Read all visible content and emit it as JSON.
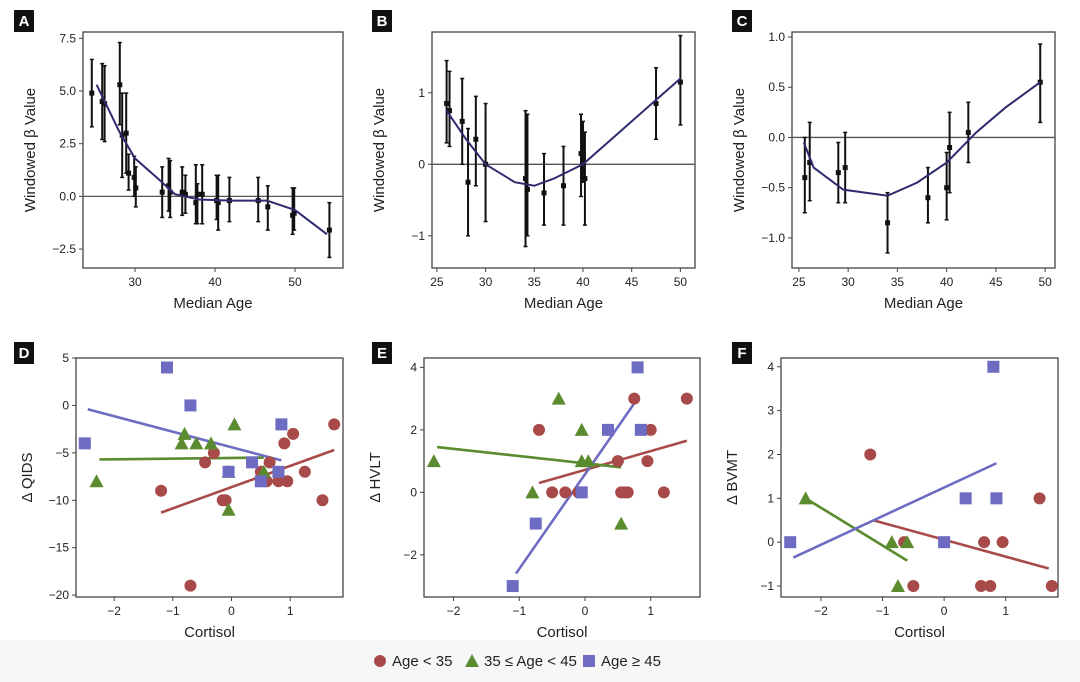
{
  "colors": {
    "red": "#a84a4a",
    "green": "#5b8b2f",
    "blue": "#6e6cc2",
    "curve": "#2e2b6e",
    "err": "#111111"
  },
  "legend": {
    "items": [
      {
        "label": "Age < 35",
        "shape": "circle",
        "color": "#a84a4a"
      },
      {
        "label": "35 ≤ Age < 45",
        "shape": "triangle",
        "color": "#5b8b2f"
      },
      {
        "label": "Age ≥ 45",
        "shape": "square",
        "color": "#6e6cc2"
      }
    ]
  },
  "chart_data": [
    {
      "panel": "A",
      "type": "scatter",
      "xlabel": "Median Age",
      "ylabel": "Windowed β Value",
      "xlim": [
        23.5,
        56
      ],
      "ylim": [
        -3.4,
        7.8
      ],
      "xticks": [
        30,
        40,
        50
      ],
      "yticks": [
        -2.5,
        0,
        2.5,
        5,
        7.5
      ],
      "ytick_labels": [
        "−2.5",
        "0.0",
        "2.5",
        "5.0",
        "7.5"
      ],
      "hline": 0,
      "points": [
        [
          24.6,
          4.9,
          3.3,
          6.5
        ],
        [
          25.9,
          4.5,
          2.7,
          6.3
        ],
        [
          26.2,
          4.4,
          2.6,
          6.2
        ],
        [
          28.1,
          5.3,
          3.4,
          7.3
        ],
        [
          28.4,
          2.9,
          0.9,
          4.9
        ],
        [
          28.9,
          3.0,
          1.1,
          4.9
        ],
        [
          29.2,
          1.1,
          0.3,
          2.0
        ],
        [
          29.9,
          0.9,
          0.0,
          1.9
        ],
        [
          30.1,
          0.4,
          -0.5,
          1.4
        ],
        [
          33.4,
          0.2,
          -1.0,
          1.4
        ],
        [
          34.2,
          0.5,
          -0.7,
          1.8
        ],
        [
          34.4,
          0.2,
          -1.0,
          1.7
        ],
        [
          35.9,
          0.2,
          -0.9,
          1.4
        ],
        [
          36.3,
          0.1,
          -0.8,
          1.0
        ],
        [
          37.6,
          -0.3,
          -1.3,
          1.5
        ],
        [
          37.8,
          0.1,
          -1.3,
          0.6
        ],
        [
          38.4,
          0.1,
          -1.3,
          1.5
        ],
        [
          40.2,
          -0.2,
          -1.1,
          1.0
        ],
        [
          40.4,
          -0.3,
          -1.6,
          1.0
        ],
        [
          41.8,
          -0.2,
          -1.2,
          0.9
        ],
        [
          45.4,
          -0.2,
          -1.2,
          0.9
        ],
        [
          46.6,
          -0.5,
          -1.6,
          0.5
        ],
        [
          49.7,
          -0.9,
          -1.8,
          0.4
        ],
        [
          49.9,
          -0.8,
          -1.6,
          0.4
        ],
        [
          54.3,
          -1.6,
          -2.9,
          -0.3
        ]
      ],
      "curve": [
        [
          25.2,
          5.3
        ],
        [
          28,
          3.1
        ],
        [
          30,
          1.8
        ],
        [
          33,
          0.8
        ],
        [
          35,
          0.1
        ],
        [
          38,
          -0.15
        ],
        [
          42,
          -0.2
        ],
        [
          46.5,
          -0.2
        ],
        [
          50,
          -0.65
        ],
        [
          54,
          -1.8
        ]
      ]
    },
    {
      "panel": "B",
      "type": "scatter",
      "xlabel": "Median Age",
      "ylabel": "Windowed β Value",
      "xlim": [
        24.5,
        51.5
      ],
      "ylim": [
        -1.45,
        1.85
      ],
      "xticks": [
        25,
        30,
        35,
        40,
        45,
        50
      ],
      "yticks": [
        -1,
        0,
        1
      ],
      "ytick_labels": [
        "−1",
        "0",
        "1"
      ],
      "hline": 0,
      "points": [
        [
          26,
          0.85,
          0.3,
          1.45
        ],
        [
          26.3,
          0.75,
          0.25,
          1.3
        ],
        [
          27.6,
          0.6,
          0,
          1.2
        ],
        [
          28.2,
          -0.25,
          -1,
          0.5
        ],
        [
          29,
          0.35,
          -0.3,
          0.95
        ],
        [
          30,
          0,
          -0.8,
          0.85
        ],
        [
          34.1,
          -0.2,
          -1.15,
          0.75
        ],
        [
          34.3,
          -0.35,
          -1,
          0.7
        ],
        [
          36,
          -0.4,
          -0.85,
          0.15
        ],
        [
          38,
          -0.3,
          -0.85,
          0.25
        ],
        [
          39.8,
          0.15,
          -0.45,
          0.7
        ],
        [
          40,
          0.25,
          -0.25,
          0.6
        ],
        [
          40.2,
          -0.2,
          -0.85,
          0.45
        ],
        [
          47.5,
          0.85,
          0.35,
          1.35
        ],
        [
          50,
          1.15,
          0.55,
          1.8
        ]
      ],
      "curve": [
        [
          26,
          0.75
        ],
        [
          28,
          0.35
        ],
        [
          30,
          0
        ],
        [
          33,
          -0.25
        ],
        [
          35,
          -0.3
        ],
        [
          37,
          -0.2
        ],
        [
          40,
          0
        ],
        [
          45,
          0.6
        ],
        [
          50,
          1.2
        ]
      ]
    },
    {
      "panel": "C",
      "type": "scatter",
      "xlabel": "Median Age",
      "ylabel": "Windowed β Value",
      "xlim": [
        24.3,
        51
      ],
      "ylim": [
        -1.3,
        1.05
      ],
      "xticks": [
        25,
        30,
        35,
        40,
        45,
        50
      ],
      "yticks": [
        -1,
        -0.5,
        0,
        0.5,
        1
      ],
      "ytick_labels": [
        "−1.0",
        "−0.5",
        "0.0",
        "0.5",
        "1.0"
      ],
      "hline": 0,
      "points": [
        [
          25.6,
          -0.4,
          -0.75,
          0
        ],
        [
          26.1,
          -0.25,
          -0.63,
          0.15
        ],
        [
          29,
          -0.35,
          -0.65,
          -0.05
        ],
        [
          29.7,
          -0.3,
          -0.65,
          0.05
        ],
        [
          34,
          -0.85,
          -1.15,
          -0.55
        ],
        [
          38.1,
          -0.6,
          -0.85,
          -0.3
        ],
        [
          40,
          -0.5,
          -0.82,
          -0.15
        ],
        [
          40.3,
          -0.1,
          -0.55,
          0.25
        ],
        [
          42.2,
          0.05,
          -0.25,
          0.35
        ],
        [
          49.5,
          0.55,
          0.15,
          0.93
        ]
      ],
      "curve": [
        [
          25.5,
          -0.05
        ],
        [
          26.5,
          -0.3
        ],
        [
          29.5,
          -0.52
        ],
        [
          34,
          -0.58
        ],
        [
          37,
          -0.45
        ],
        [
          40,
          -0.25
        ],
        [
          43,
          0.05
        ],
        [
          46,
          0.3
        ],
        [
          49.5,
          0.55
        ]
      ]
    },
    {
      "panel": "D",
      "type": "scatter",
      "xlabel": "Cortisol",
      "ylabel": "Δ QIDS",
      "xlim": [
        -2.65,
        1.9
      ],
      "ylim": [
        -20.2,
        5
      ],
      "xticks": [
        -2,
        -1,
        0,
        1
      ],
      "xtick_labels": [
        "−2",
        "−1",
        "0",
        "1"
      ],
      "yticks": [
        -20,
        -15,
        -10,
        -5,
        0,
        5
      ],
      "ytick_labels": [
        "−20",
        "−15",
        "−10",
        "−5",
        "0",
        "5"
      ],
      "series": [
        {
          "name": "Age < 35",
          "color": "red",
          "shape": "circle",
          "points": [
            [
              -1.2,
              -9
            ],
            [
              -0.7,
              -19
            ],
            [
              -0.45,
              -6
            ],
            [
              -0.3,
              -5
            ],
            [
              -0.15,
              -10
            ],
            [
              -0.1,
              -10
            ],
            [
              0.5,
              -7
            ],
            [
              0.6,
              -8
            ],
            [
              0.65,
              -6
            ],
            [
              0.8,
              -8
            ],
            [
              0.95,
              -8
            ],
            [
              0.9,
              -4
            ],
            [
              1.05,
              -3
            ],
            [
              1.25,
              -7
            ],
            [
              1.55,
              -10
            ],
            [
              1.75,
              -2
            ]
          ],
          "fit": [
            [
              -1.2,
              -11.3
            ],
            [
              1.75,
              -4.7
            ]
          ]
        },
        {
          "name": "35 ≤ Age < 45",
          "color": "green",
          "shape": "triangle",
          "points": [
            [
              -2.3,
              -8
            ],
            [
              -0.8,
              -3
            ],
            [
              -0.85,
              -4
            ],
            [
              -0.6,
              -4
            ],
            [
              -0.35,
              -4
            ],
            [
              0.05,
              -2
            ],
            [
              -0.05,
              -7
            ],
            [
              -0.05,
              -11
            ],
            [
              0.55,
              -7
            ]
          ],
          "fit": [
            [
              -2.25,
              -5.7
            ],
            [
              0.55,
              -5.5
            ]
          ]
        },
        {
          "name": "Age ≥ 45",
          "color": "blue",
          "shape": "square",
          "points": [
            [
              -2.5,
              -4
            ],
            [
              -1.1,
              4
            ],
            [
              -0.7,
              0
            ],
            [
              -0.05,
              -7
            ],
            [
              0.35,
              -6
            ],
            [
              0.5,
              -8
            ],
            [
              0.8,
              -7
            ],
            [
              0.85,
              -2
            ]
          ],
          "fit": [
            [
              -2.45,
              -0.4
            ],
            [
              0.85,
              -5.8
            ]
          ]
        }
      ]
    },
    {
      "panel": "E",
      "type": "scatter",
      "xlabel": "Cortisol",
      "ylabel": "Δ HVLT",
      "xlim": [
        -2.45,
        1.75
      ],
      "ylim": [
        -3.35,
        4.3
      ],
      "xticks": [
        -2,
        -1,
        0,
        1
      ],
      "xtick_labels": [
        "−2",
        "−1",
        "0",
        "1"
      ],
      "yticks": [
        -2,
        0,
        2,
        4
      ],
      "ytick_labels": [
        "−2",
        "0",
        "2",
        "4"
      ],
      "series": [
        {
          "name": "Age < 35",
          "color": "red",
          "shape": "circle",
          "points": [
            [
              -0.7,
              2
            ],
            [
              -0.5,
              0
            ],
            [
              -0.3,
              0
            ],
            [
              -0.1,
              0
            ],
            [
              0.5,
              1
            ],
            [
              0.55,
              0
            ],
            [
              0.6,
              0
            ],
            [
              0.65,
              0
            ],
            [
              0.75,
              3
            ],
            [
              1.0,
              2
            ],
            [
              0.95,
              1
            ],
            [
              1.2,
              0
            ],
            [
              1.55,
              3
            ]
          ],
          "fit": [
            [
              -0.7,
              0.3
            ],
            [
              1.55,
              1.65
            ]
          ]
        },
        {
          "name": "35 ≤ Age < 45",
          "color": "green",
          "shape": "triangle",
          "points": [
            [
              -2.3,
              1
            ],
            [
              -0.8,
              0
            ],
            [
              -0.4,
              3
            ],
            [
              -0.05,
              2
            ],
            [
              -0.05,
              1
            ],
            [
              0.05,
              1
            ],
            [
              0.55,
              -1
            ]
          ],
          "fit": [
            [
              -2.25,
              1.45
            ],
            [
              0.55,
              0.8
            ]
          ]
        },
        {
          "name": "Age ≥ 45",
          "color": "blue",
          "shape": "square",
          "points": [
            [
              -1.1,
              -3
            ],
            [
              -0.75,
              -1
            ],
            [
              -0.05,
              0
            ],
            [
              0.35,
              2
            ],
            [
              0.8,
              4
            ],
            [
              0.85,
              2
            ]
          ],
          "fit": [
            [
              -1.05,
              -2.6
            ],
            [
              0.8,
              3.0
            ]
          ]
        }
      ]
    },
    {
      "panel": "F",
      "type": "scatter",
      "xlabel": "Cortisol",
      "ylabel": "Δ BVMT",
      "xlim": [
        -2.65,
        1.85
      ],
      "ylim": [
        -1.25,
        4.2
      ],
      "xticks": [
        -2,
        -1,
        0,
        1
      ],
      "xtick_labels": [
        "−2",
        "−1",
        "0",
        "1"
      ],
      "yticks": [
        -1,
        0,
        1,
        2,
        3,
        4
      ],
      "ytick_labels": [
        "−1",
        "0",
        "1",
        "2",
        "3",
        "4"
      ],
      "series": [
        {
          "name": "Age < 35",
          "color": "red",
          "shape": "circle",
          "points": [
            [
              -1.2,
              2
            ],
            [
              -0.65,
              0
            ],
            [
              -0.5,
              -1
            ],
            [
              0.6,
              -1
            ],
            [
              0.65,
              0
            ],
            [
              0.75,
              -1
            ],
            [
              0.95,
              0
            ],
            [
              1.55,
              1
            ],
            [
              1.75,
              -1
            ]
          ],
          "fit": [
            [
              -1.15,
              0.5
            ],
            [
              1.7,
              -0.6
            ]
          ]
        },
        {
          "name": "35 ≤ Age < 45",
          "color": "green",
          "shape": "triangle",
          "points": [
            [
              -2.25,
              1
            ],
            [
              -0.85,
              0
            ],
            [
              -0.6,
              0
            ],
            [
              -0.75,
              -1
            ]
          ],
          "fit": [
            [
              -2.25,
              1.0
            ],
            [
              -0.6,
              -0.42
            ]
          ]
        },
        {
          "name": "Age ≥ 45",
          "color": "blue",
          "shape": "square",
          "points": [
            [
              -2.5,
              0
            ],
            [
              0,
              0
            ],
            [
              0.35,
              1
            ],
            [
              0.8,
              4
            ],
            [
              0.85,
              1
            ]
          ],
          "fit": [
            [
              -2.45,
              -0.35
            ],
            [
              0.85,
              1.8
            ]
          ]
        }
      ]
    }
  ]
}
